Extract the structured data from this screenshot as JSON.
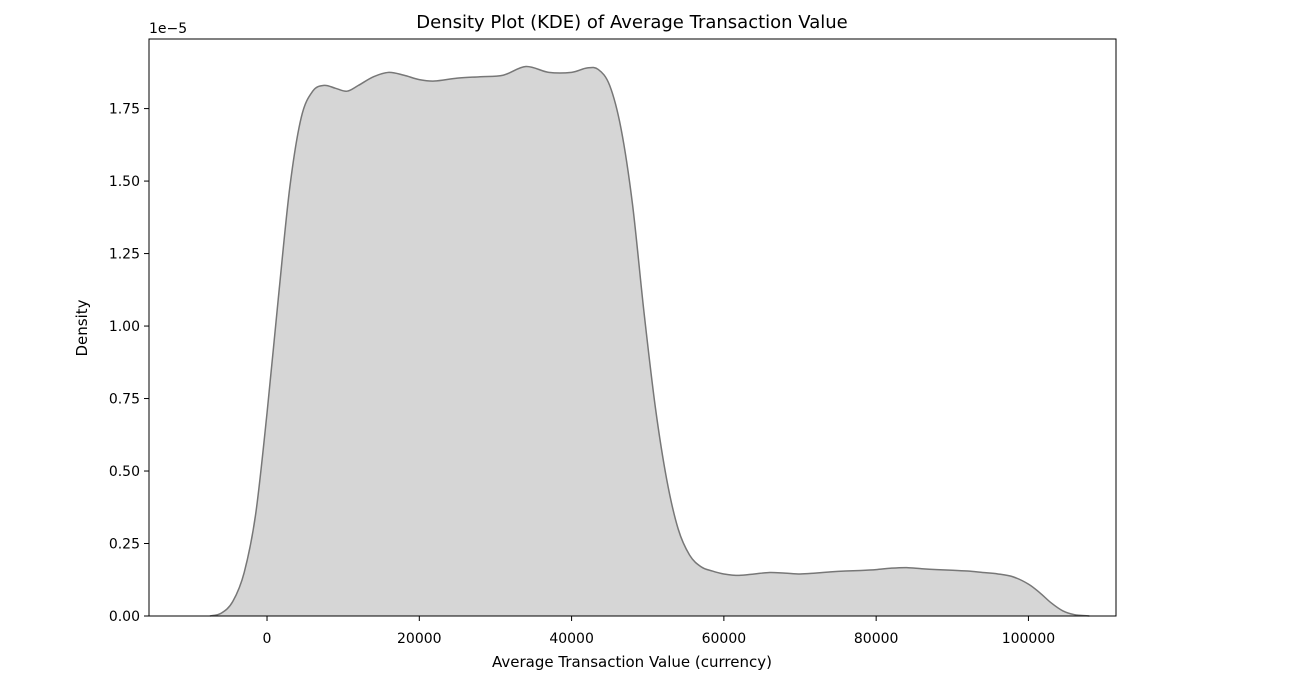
{
  "chart_data": {
    "type": "area",
    "title": "Density Plot (KDE) of Average Transaction Value",
    "xlabel": "Average Transaction Value (currency)",
    "ylabel": "Density",
    "y_offset_label": "1e−5",
    "xlim": [
      -15500,
      111500
    ],
    "ylim": [
      0,
      1.99
    ],
    "x_ticks": [
      0,
      20000,
      40000,
      60000,
      80000,
      100000
    ],
    "x_tick_labels": [
      "0",
      "20000",
      "40000",
      "60000",
      "80000",
      "100000"
    ],
    "y_ticks": [
      0,
      0.25,
      0.5,
      0.75,
      1.0,
      1.25,
      1.5,
      1.75
    ],
    "y_tick_labels": [
      "0.00",
      "0.25",
      "0.50",
      "0.75",
      "1.00",
      "1.25",
      "1.50",
      "1.75"
    ],
    "grid": false,
    "fill_color": "#d6d6d6",
    "line_color": "#777777",
    "series": [
      {
        "x": [
          -7500,
          -6000,
          -4500,
          -3000,
          -1500,
          0,
          1500,
          3000,
          4500,
          6000,
          7500,
          9000,
          10500,
          12000,
          14000,
          16000,
          18000,
          20000,
          22000,
          25000,
          28000,
          31000,
          34000,
          37000,
          40000,
          42000,
          43500,
          45000,
          46500,
          48000,
          49500,
          51000,
          52500,
          54000,
          55500,
          57000,
          58500,
          60000,
          62000,
          64000,
          66000,
          68000,
          70000,
          72000,
          74000,
          76000,
          78000,
          80000,
          82000,
          84000,
          86000,
          88000,
          90000,
          92000,
          94000,
          96000,
          98000,
          100000,
          101500,
          103000,
          104500,
          106000,
          108000
        ],
        "y": [
          0.0,
          0.01,
          0.05,
          0.15,
          0.35,
          0.7,
          1.1,
          1.48,
          1.72,
          1.81,
          1.83,
          1.82,
          1.81,
          1.83,
          1.86,
          1.875,
          1.865,
          1.85,
          1.845,
          1.855,
          1.86,
          1.865,
          1.895,
          1.875,
          1.875,
          1.89,
          1.885,
          1.83,
          1.68,
          1.42,
          1.05,
          0.72,
          0.47,
          0.3,
          0.21,
          0.17,
          0.155,
          0.145,
          0.14,
          0.145,
          0.15,
          0.148,
          0.145,
          0.148,
          0.152,
          0.155,
          0.157,
          0.16,
          0.165,
          0.167,
          0.163,
          0.16,
          0.158,
          0.155,
          0.15,
          0.145,
          0.135,
          0.11,
          0.08,
          0.045,
          0.018,
          0.005,
          0.0
        ]
      }
    ]
  }
}
